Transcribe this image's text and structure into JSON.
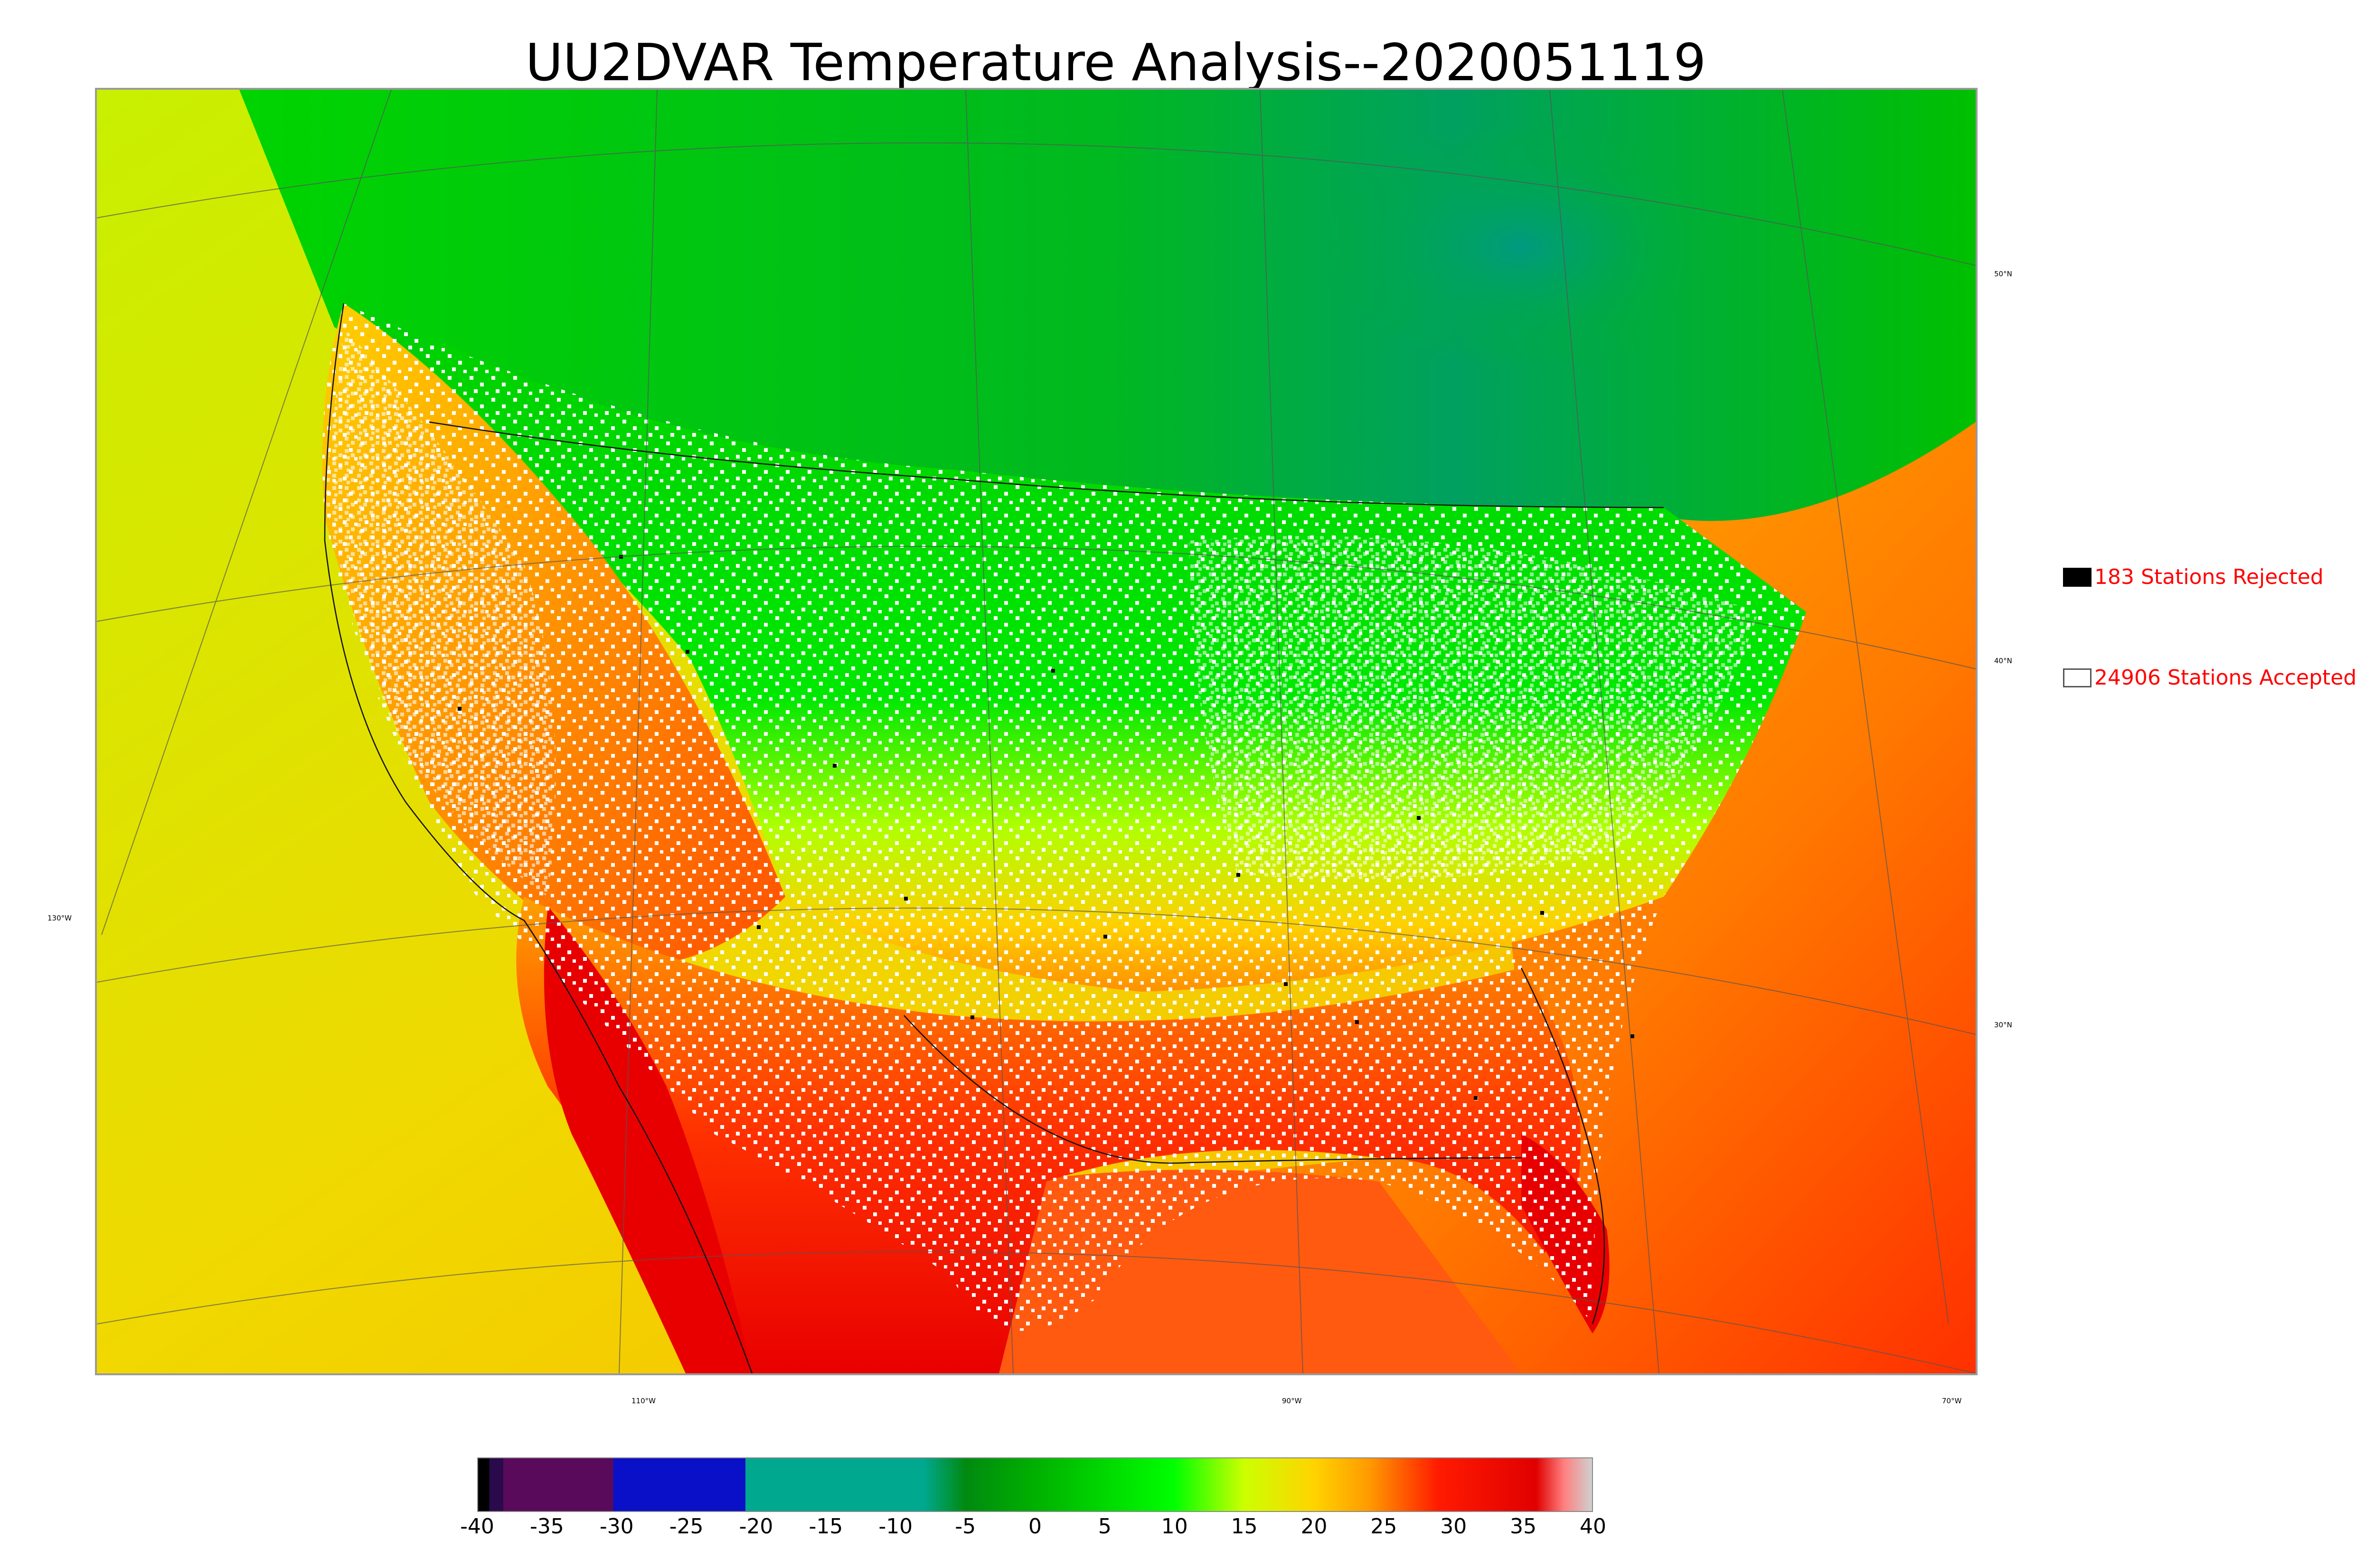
{
  "title": "UU2DVAR Temperature Analysis--2020051119",
  "legend": {
    "rejected": {
      "label": "183 Stations Rejected",
      "color": "#000000"
    },
    "accepted": {
      "label": "24906 Stations Accepted",
      "color": "#ffffff"
    }
  },
  "lat_labels": [
    "50°N",
    "40°N",
    "30°N"
  ],
  "lon_labels": [
    "130°W",
    "110°W",
    "90°W",
    "70°W"
  ],
  "colorbar": {
    "ticks": [
      "-40",
      "-35",
      "-30",
      "-25",
      "-20",
      "-15",
      "-10",
      "-5",
      "0",
      "5",
      "10",
      "15",
      "20",
      "25",
      "30",
      "35",
      "40"
    ],
    "range": [
      -40,
      40
    ],
    "colors": {
      "minus40": "#000000",
      "minus38": "#2a0a4a",
      "minus35": "#5a0a5a",
      "minus30": "#0a10c8",
      "minus20": "#00a890",
      "minus8": "#00a890",
      "minus5": "#008a10",
      "zero": "#00b000",
      "ten": "#00ff00",
      "fifteen": "#ccff00",
      "twenty": "#ffd400",
      "twentyfive": "#ff9a00",
      "thirty": "#ff1a00",
      "thirtyfive": "#e00000",
      "thirtyeight": "#ff8080",
      "forty": "#d0d0d0"
    }
  },
  "map_colors": {
    "ocean_west": "#f0e000",
    "ocean_gulf": "#ff6a10",
    "canada": "#00c400",
    "great_plains": "#00e030",
    "southwest_hot": "#ff1400",
    "southeast": "#ff4000",
    "station_accepted": "#ffffff",
    "station_rejected": "#000000"
  }
}
